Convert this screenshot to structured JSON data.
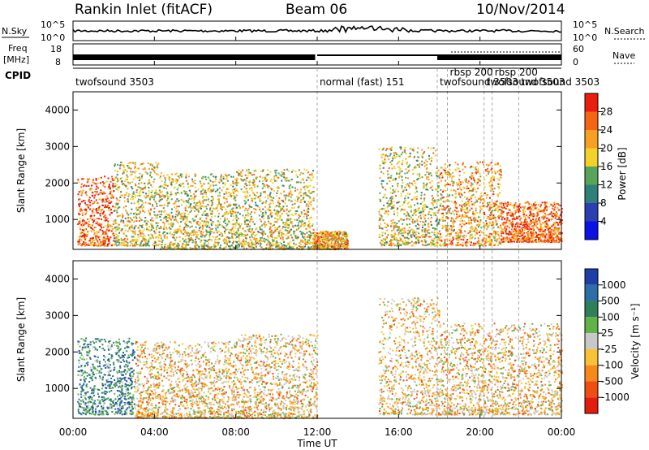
{
  "header": {
    "station": "Rankin Inlet (fitACF)",
    "beam": "Beam 06",
    "date": "10/Nov/2014"
  },
  "strips": {
    "nsky_label": "N.Sky",
    "nsearch_label": "N.Search",
    "noise_ticks_left": [
      "10^5",
      "10^0"
    ],
    "noise_ticks_right": [
      "10^5",
      "10^0"
    ],
    "freq_label_top": "Freq",
    "freq_label_unit": "[MHz]",
    "freq_ticks": [
      "18",
      "8"
    ],
    "nave_label": "Nave",
    "nave_ticks": [
      "60",
      "0"
    ],
    "cpid_label": "CPID",
    "cpid_entries": [
      {
        "label": "twofsound 3503",
        "start_hour": 0
      },
      {
        "label": "normal (fast) 151",
        "start_hour": 12.0
      },
      {
        "label": "twofsound 3503",
        "start_hour": 17.9
      },
      {
        "label": "rbsp 200",
        "start_hour": 18.4
      },
      {
        "label": "twofsound 3503",
        "start_hour": 20.2
      },
      {
        "label": "rbsp 200",
        "start_hour": 20.6
      },
      {
        "label": "twofsound 3503",
        "start_hour": 21.9
      }
    ]
  },
  "x_axis": {
    "label": "Time UT",
    "ticks": [
      "00:00",
      "04:00",
      "08:00",
      "12:00",
      "16:00",
      "20:00",
      "00:00"
    ]
  },
  "panels": {
    "power": {
      "ylabel": "Slant Range [km]",
      "yticks": [
        "1000",
        "2000",
        "3000",
        "4000"
      ],
      "cbar_label": "Power [dB]",
      "cbar_ticks": [
        "4",
        "8",
        "12",
        "16",
        "20",
        "24",
        "28"
      ],
      "cbar_colors": [
        "#0a12e6",
        "#2b3fb0",
        "#2f7f7a",
        "#58a55a",
        "#f2d12a",
        "#f7a122",
        "#f46514",
        "#ea1d0f"
      ]
    },
    "velocity": {
      "ylabel": "Slant Range [km]",
      "yticks": [
        "1000",
        "2000",
        "3000",
        "4000"
      ],
      "cbar_label": "Velocity [m s⁻¹]",
      "cbar_ticks": [
        "1000",
        "500",
        "100",
        "25",
        "-25",
        "-100",
        "-500",
        "-1000"
      ],
      "cbar_colors": [
        "#1e3fa8",
        "#2c6fa6",
        "#2f7f5a",
        "#62b24a",
        "#c8c8c8",
        "#f7c234",
        "#f58a1a",
        "#ef4d12",
        "#e21d0e"
      ]
    }
  },
  "chart_data": {
    "type": "heatmap",
    "title": "Rankin Inlet (fitACF)",
    "subtitle": "Beam 06",
    "xlabel": "Time UT",
    "ylabel": "Slant Range [km]",
    "xlim_hours": [
      0,
      24
    ],
    "ylim_km": [
      180,
      4500
    ],
    "grid": false,
    "cpid_change_hours": [
      12.0,
      17.9,
      18.4,
      20.2,
      20.6,
      21.9
    ],
    "scatter_regions_power": [
      {
        "t": [
          0.2,
          2.0
        ],
        "r": [
          300,
          2200
        ],
        "level": 26
      },
      {
        "t": [
          2.0,
          4.2
        ],
        "r": [
          300,
          2600
        ],
        "level": 18
      },
      {
        "t": [
          4.2,
          8.0
        ],
        "r": [
          200,
          2300
        ],
        "level": 18
      },
      {
        "t": [
          8.0,
          11.8
        ],
        "r": [
          200,
          2400
        ],
        "level": 16
      },
      {
        "t": [
          11.8,
          13.5
        ],
        "r": [
          200,
          700
        ],
        "level": 22
      },
      {
        "t": [
          15.0,
          18.0
        ],
        "r": [
          300,
          3000
        ],
        "level": 16
      },
      {
        "t": [
          18.0,
          21.0
        ],
        "r": [
          300,
          2600
        ],
        "level": 20
      },
      {
        "t": [
          21.0,
          24.0
        ],
        "r": [
          400,
          1500
        ],
        "level": 26
      }
    ],
    "scatter_regions_velocity": [
      {
        "t": [
          0.2,
          3.0
        ],
        "r": [
          300,
          2400
        ],
        "level": 100
      },
      {
        "t": [
          3.0,
          8.0
        ],
        "r": [
          200,
          2300
        ],
        "level": -100
      },
      {
        "t": [
          8.0,
          12.0
        ],
        "r": [
          200,
          2500
        ],
        "level": -100
      },
      {
        "t": [
          15.0,
          18.0
        ],
        "r": [
          300,
          3500
        ],
        "level": -100
      },
      {
        "t": [
          18.0,
          24.0
        ],
        "r": [
          300,
          2800
        ],
        "level": -100
      }
    ]
  }
}
